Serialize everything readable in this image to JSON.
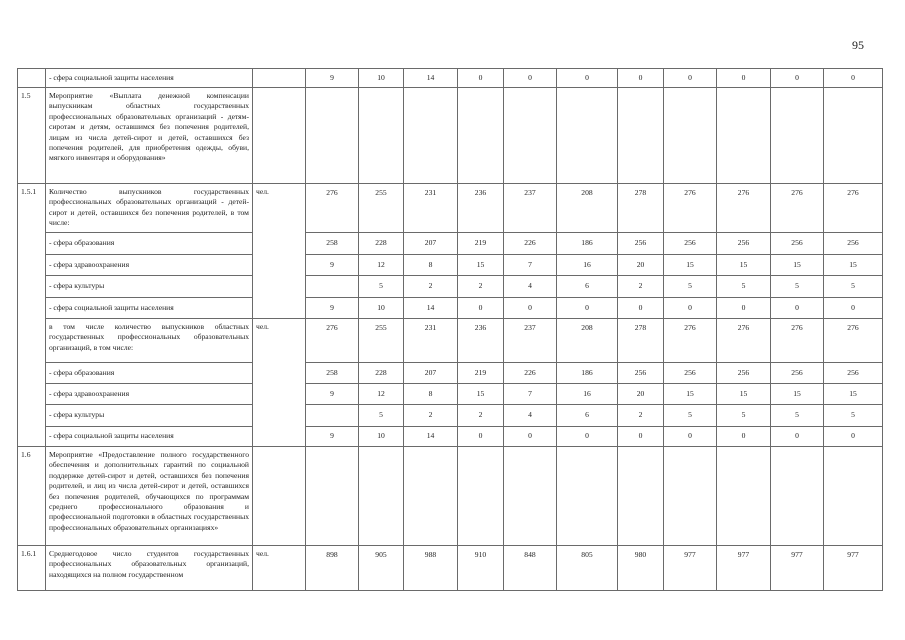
{
  "page_number": "95",
  "rows": [
    {
      "code": "",
      "name": "- сфера социальной защиты населения",
      "unit": "",
      "values": [
        "9",
        "10",
        "14",
        "0",
        "0",
        "0",
        "0",
        "0",
        "0",
        "0",
        "0"
      ]
    },
    {
      "code": "1.5",
      "name": "Мероприятие «Выплата денежной компенсации выпускникам областных государственных профессиональных образовательных организаций - детям-сиротам и детям, оставшимся без попечения родителей, лицам из числа детей-сирот и детей, оставшихся без попечения родителей, для приобретения одежды, обуви, мягкого инвентаря и оборудования»",
      "unit": "",
      "values": [
        "",
        "",
        "",
        "",
        "",
        "",
        "",
        "",
        "",
        "",
        ""
      ]
    },
    {
      "code": "1.5.1",
      "name": "Количество выпускников государственных профессиональных образовательных организаций - детей-сирот и детей, оставшихся без попечения родителей, в том числе:",
      "unit": "чел.",
      "values": [
        "276",
        "255",
        "231",
        "236",
        "237",
        "208",
        "278",
        "276",
        "276",
        "276",
        "276"
      ]
    },
    {
      "code": "",
      "name": "- сфера образования",
      "unit": "",
      "values": [
        "258",
        "228",
        "207",
        "219",
        "226",
        "186",
        "256",
        "256",
        "256",
        "256",
        "256"
      ]
    },
    {
      "code": "",
      "name": "- сфера здравоохранения",
      "unit": "",
      "values": [
        "9",
        "12",
        "8",
        "15",
        "7",
        "16",
        "20",
        "15",
        "15",
        "15",
        "15"
      ]
    },
    {
      "code": "",
      "name": "- сфера культуры",
      "unit": "",
      "values": [
        "",
        "5",
        "2",
        "2",
        "4",
        "6",
        "2",
        "5",
        "5",
        "5",
        "5"
      ]
    },
    {
      "code": "",
      "name": "- сфера социальной защиты населения",
      "unit": "",
      "values": [
        "9",
        "10",
        "14",
        "0",
        "0",
        "0",
        "0",
        "0",
        "0",
        "0",
        "0"
      ]
    },
    {
      "code": "",
      "name": "в том числе количество выпускников областных государственных профессиональных образовательных организаций, в том числе:",
      "unit": "чел.",
      "values": [
        "276",
        "255",
        "231",
        "236",
        "237",
        "208",
        "278",
        "276",
        "276",
        "276",
        "276"
      ]
    },
    {
      "code": "",
      "name": "- сфера образования",
      "unit": "",
      "values": [
        "258",
        "228",
        "207",
        "219",
        "226",
        "186",
        "256",
        "256",
        "256",
        "256",
        "256"
      ]
    },
    {
      "code": "",
      "name": "- сфера здравоохранения",
      "unit": "",
      "values": [
        "9",
        "12",
        "8",
        "15",
        "7",
        "16",
        "20",
        "15",
        "15",
        "15",
        "15"
      ]
    },
    {
      "code": "",
      "name": "- сфера культуры",
      "unit": "",
      "values": [
        "",
        "5",
        "2",
        "2",
        "4",
        "6",
        "2",
        "5",
        "5",
        "5",
        "5"
      ]
    },
    {
      "code": "",
      "name": "- сфера социальной защиты населения",
      "unit": "",
      "values": [
        "9",
        "10",
        "14",
        "0",
        "0",
        "0",
        "0",
        "0",
        "0",
        "0",
        "0"
      ]
    },
    {
      "code": "1.6",
      "name": "Мероприятие «Предоставление полного государственного обеспечения и дополнительных гарантий по социальной поддержке детей-сирот и детей, оставшихся без попечения родителей, и лиц из числа детей-сирот и детей, оставшихся без попечения родителей, обучающихся по программам среднего профессионального образования и профессиональной подготовки в областных государственных профессиональных образовательных организациях»",
      "unit": "",
      "values": [
        "",
        "",
        "",
        "",
        "",
        "",
        "",
        "",
        "",
        "",
        ""
      ]
    },
    {
      "code": "1.6.1",
      "name": "Среднегодовое число студентов государственных профессиональных образовательных организаций, находящихся на полном государственном",
      "unit": "чел.",
      "values": [
        "898",
        "905",
        "988",
        "910",
        "848",
        "805",
        "980",
        "977",
        "977",
        "977",
        "977"
      ]
    }
  ]
}
